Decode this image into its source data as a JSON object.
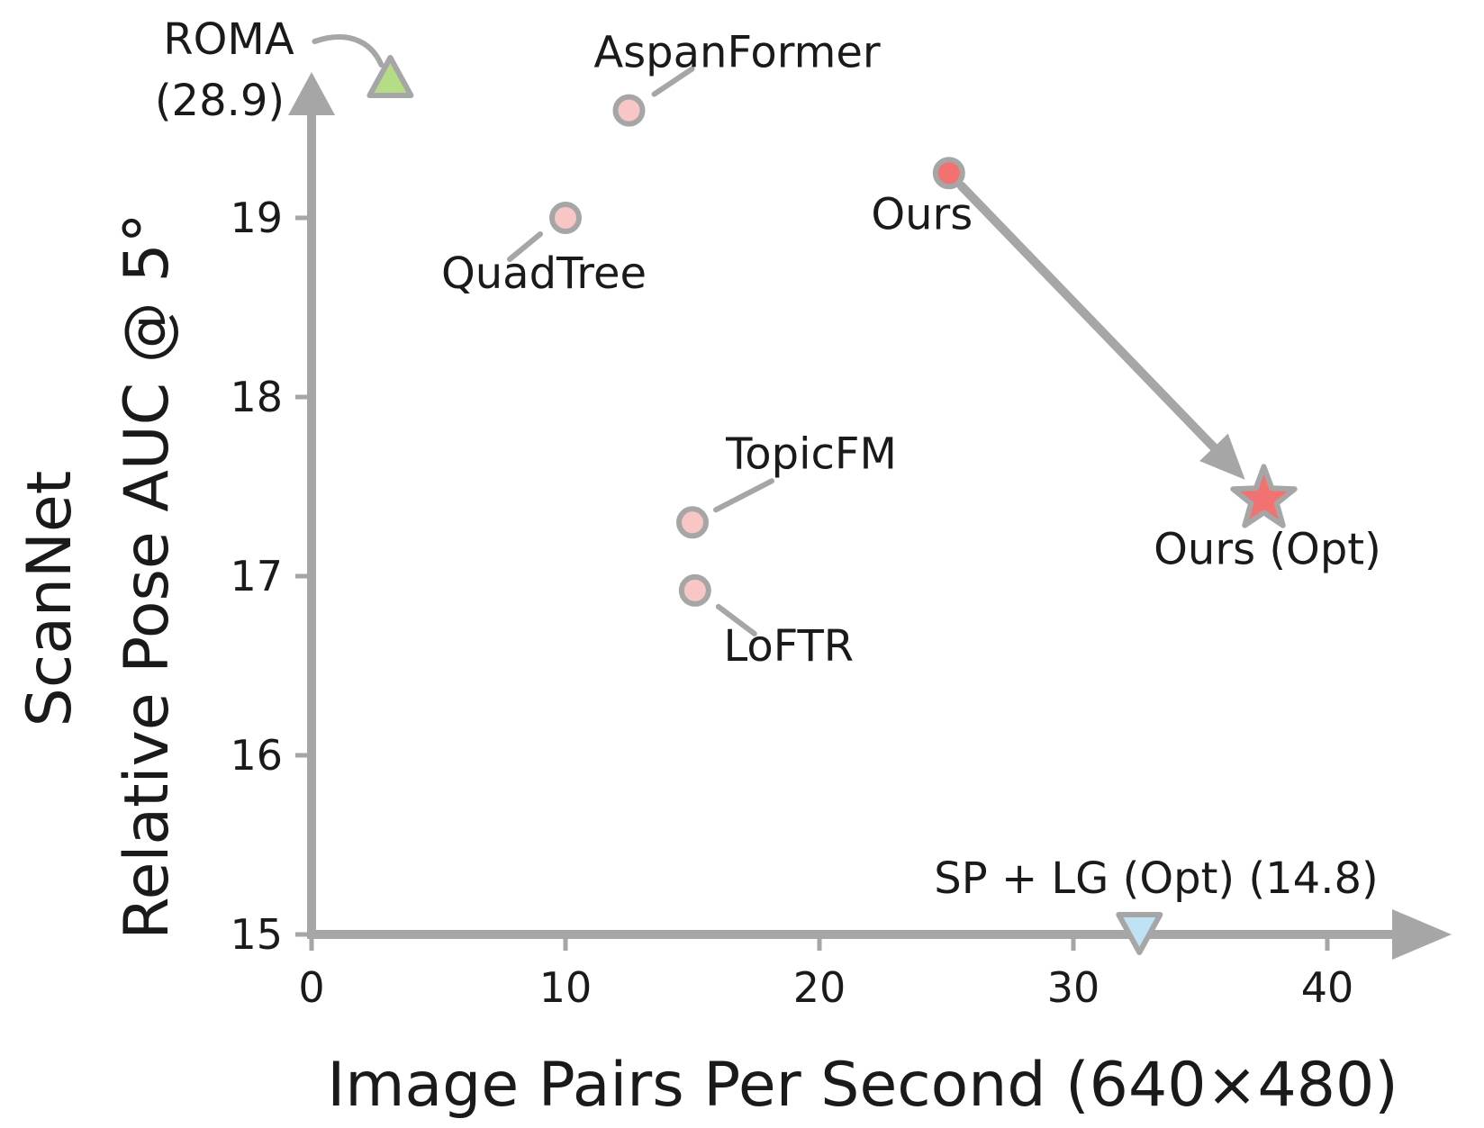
{
  "chart_data": {
    "type": "scatter",
    "xlabel": "Image Pairs Per Second (640×480)",
    "ylabel_line1": "ScanNet",
    "ylabel_line2": "Relative Pose AUC @ 5°",
    "xlim": [
      0,
      45
    ],
    "ylim": [
      15,
      19.8
    ],
    "xticks": [
      0,
      10,
      20,
      30,
      40
    ],
    "yticks": [
      15,
      16,
      17,
      18,
      19
    ],
    "grid": false,
    "legend": "none",
    "colors": {
      "axis": "#a6a6a6",
      "baseline_point": "#f9c6c6",
      "ours_point": "#f27272",
      "roma_marker": "#b5dd86",
      "splg_marker": "#bfe3f4",
      "marker_edge": "#a6a6a6"
    },
    "points": [
      {
        "name": "AspanFormer",
        "x": 12.5,
        "y": 19.6,
        "marker": "circle",
        "label": "AspanFormer"
      },
      {
        "name": "QuadTree",
        "x": 10.0,
        "y": 19.0,
        "marker": "circle",
        "label": "QuadTree"
      },
      {
        "name": "TopicFM",
        "x": 15.0,
        "y": 17.3,
        "marker": "circle",
        "label": "TopicFM"
      },
      {
        "name": "LoFTR",
        "x": 15.1,
        "y": 16.92,
        "marker": "circle",
        "label": "LoFTR"
      },
      {
        "name": "Ours",
        "x": 25.1,
        "y": 19.25,
        "marker": "circle",
        "label": "Ours"
      },
      {
        "name": "Ours (Opt)",
        "x": 37.5,
        "y": 17.43,
        "marker": "star",
        "label": "Ours (Opt)"
      }
    ],
    "off_scale_points": [
      {
        "name": "ROMA",
        "x": 3.1,
        "actual_value": 28.9,
        "marker": "triangle-up",
        "label_line1": "ROMA",
        "label_line2": "(28.9)"
      },
      {
        "name": "SP + LG (Opt)",
        "x": 32.6,
        "actual_value": 14.8,
        "marker": "triangle-down",
        "label": "SP + LG (Opt) (14.8)"
      }
    ],
    "arrow": {
      "from": "Ours",
      "to": "Ours (Opt)"
    }
  }
}
